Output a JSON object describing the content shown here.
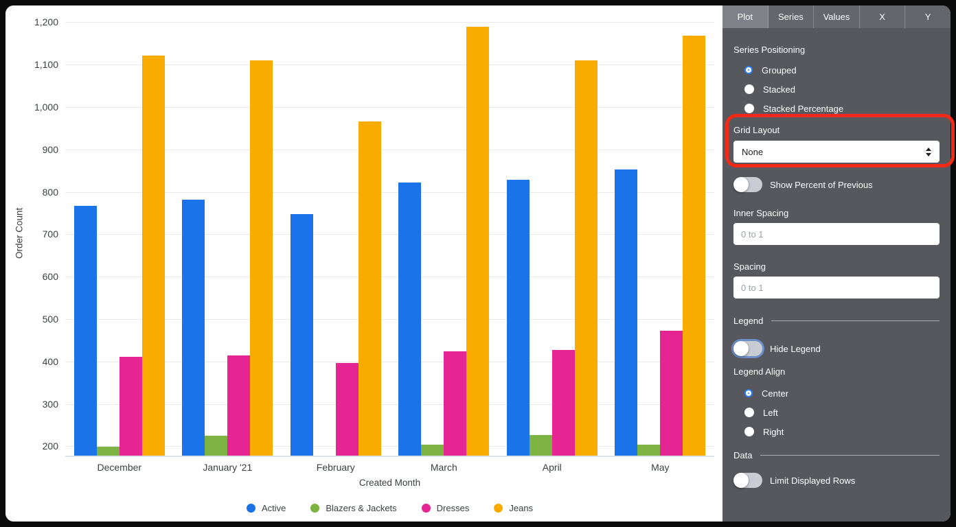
{
  "panel": {
    "tabs": [
      {
        "label": "Plot",
        "active": true
      },
      {
        "label": "Series",
        "active": false
      },
      {
        "label": "Values",
        "active": false
      },
      {
        "label": "X",
        "active": false
      },
      {
        "label": "Y",
        "active": false
      }
    ],
    "series_positioning": {
      "label": "Series Positioning",
      "options": [
        {
          "label": "Grouped",
          "selected": true
        },
        {
          "label": "Stacked",
          "selected": false
        },
        {
          "label": "Stacked Percentage",
          "selected": false
        }
      ]
    },
    "grid_layout": {
      "label": "Grid Layout",
      "value": "None"
    },
    "show_percent_of_previous": {
      "label": "Show Percent of Previous",
      "on": false
    },
    "inner_spacing": {
      "label": "Inner Spacing",
      "value": "",
      "placeholder": "0 to 1"
    },
    "spacing": {
      "label": "Spacing",
      "value": "",
      "placeholder": "0 to 1"
    },
    "legend_section": {
      "header": "Legend",
      "hide_legend": {
        "label": "Hide Legend",
        "on": false,
        "focused": true
      },
      "legend_align": {
        "label": "Legend Align",
        "options": [
          {
            "label": "Center",
            "selected": true
          },
          {
            "label": "Left",
            "selected": false
          },
          {
            "label": "Right",
            "selected": false
          }
        ]
      }
    },
    "data_section": {
      "header": "Data",
      "limit_displayed_rows": {
        "label": "Limit Displayed Rows",
        "on": false
      }
    }
  },
  "annotation": {
    "type": "highlight-box",
    "color": "#F02A17",
    "target": "grid-layout-section"
  },
  "chart_data": {
    "type": "bar",
    "title": "",
    "xlabel": "Created Month",
    "ylabel": "Order Count",
    "categories": [
      "December",
      "January '21",
      "February",
      "March",
      "April",
      "May"
    ],
    "series": [
      {
        "name": "Active",
        "color": "#1a73e8",
        "values": [
          767,
          781,
          748,
          822,
          828,
          853
        ]
      },
      {
        "name": "Blazers & Jackets",
        "color": "#7cb342",
        "values": [
          199,
          225,
          null,
          204,
          227,
          204
        ]
      },
      {
        "name": "Dresses",
        "color": "#e52592",
        "values": [
          411,
          415,
          396,
          424,
          427,
          473
        ]
      },
      {
        "name": "Jeans",
        "color": "#f9ab00",
        "values": [
          1121,
          1110,
          966,
          1190,
          1110,
          1169
        ]
      }
    ],
    "ylim": [
      178,
      1228
    ],
    "yticks": [
      200,
      300,
      400,
      500,
      600,
      700,
      800,
      900,
      1000,
      1100,
      1200
    ],
    "grid": true,
    "legend_position": "bottom-center"
  }
}
